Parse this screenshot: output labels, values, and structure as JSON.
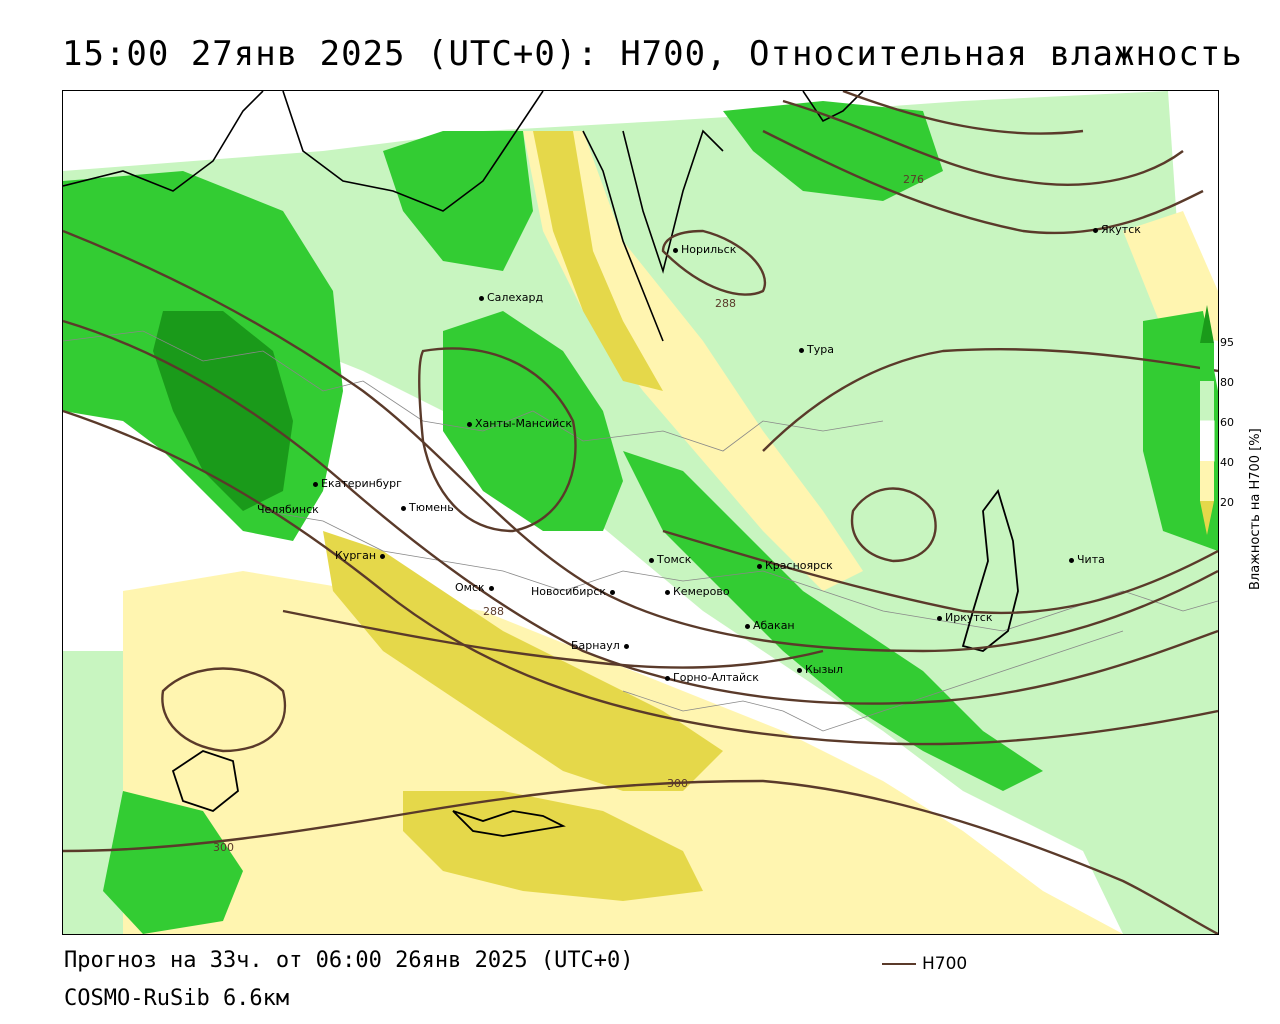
{
  "header": {
    "title": "15:00 27янв 2025 (UTC+0): H700, Относительная влажность"
  },
  "colors": {
    "green_dark": "#1a9a1a",
    "green": "#33cc33",
    "green_light": "#c8f5c0",
    "yellow_light": "#fff5b0",
    "yellow": "#e5d84a",
    "contour": "#5a3a2a"
  },
  "cities": [
    {
      "name": "Норильск"
    },
    {
      "name": "Салехард"
    },
    {
      "name": "Тура"
    },
    {
      "name": "Якутск"
    },
    {
      "name": "Ханты-Мансийск"
    },
    {
      "name": "Екатеринбург"
    },
    {
      "name": "Тюмень"
    },
    {
      "name": "Челябинск"
    },
    {
      "name": "Курган"
    },
    {
      "name": "Омск"
    },
    {
      "name": "Новосибирск"
    },
    {
      "name": "Томск"
    },
    {
      "name": "Кемерово"
    },
    {
      "name": "Красноярск"
    },
    {
      "name": "Абакан"
    },
    {
      "name": "Барнаул"
    },
    {
      "name": "Горно-Алтайск"
    },
    {
      "name": "Кызыл"
    },
    {
      "name": "Иркутск"
    },
    {
      "name": "Чита"
    }
  ],
  "contour_labels": [
    "276",
    "288",
    "288",
    "300",
    "300"
  ],
  "legend": {
    "ticks": [
      "95",
      "80",
      "60",
      "40",
      "20"
    ],
    "unit_label": "Влажность на H700 [%]"
  },
  "footer": {
    "forecast": "Прогноз на 33ч. от 06:00 26янв 2025 (UTC+0)",
    "model": "COSMO-RuSib 6.6км",
    "series_label": "H700"
  }
}
